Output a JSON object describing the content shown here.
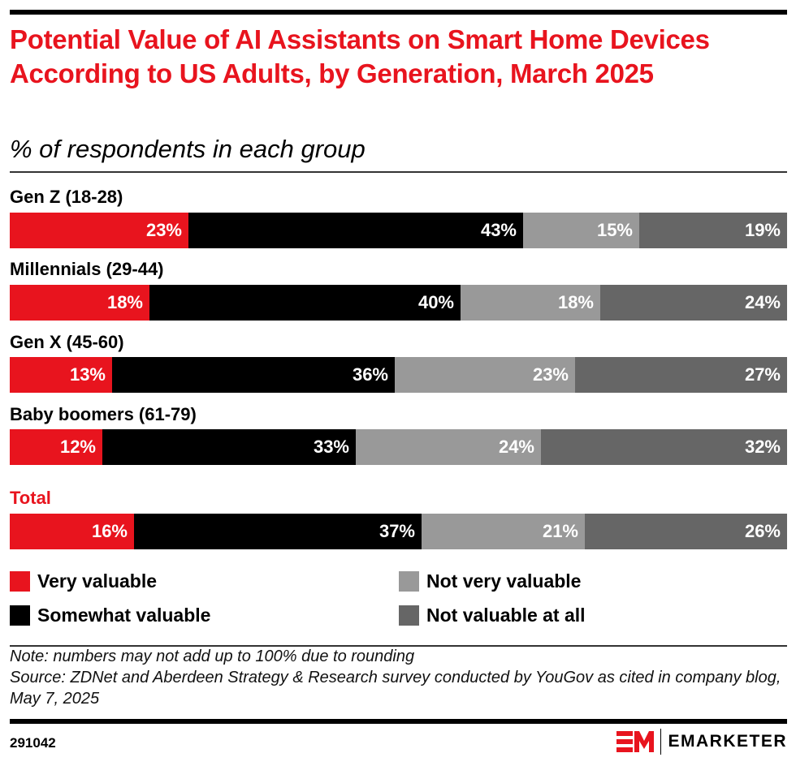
{
  "chart_data": {
    "type": "bar",
    "orientation": "horizontal",
    "stacked": true,
    "percent_stacked": true,
    "title": "Potential Value of AI Assistants on Smart Home Devices According to US Adults, by Generation, March 2025",
    "subtitle": "% of respondents in each group",
    "categories": [
      "Gen Z (18-28)",
      "Millennials (29-44)",
      "Gen X (45-60)",
      "Baby boomers (61-79)",
      "Total"
    ],
    "series": [
      {
        "name": "Very valuable",
        "color": "#e8141e",
        "values": [
          23,
          18,
          13,
          12,
          16
        ]
      },
      {
        "name": "Somewhat valuable",
        "color": "#000000",
        "values": [
          43,
          40,
          36,
          33,
          37
        ]
      },
      {
        "name": "Not very valuable",
        "color": "#999999",
        "values": [
          15,
          18,
          23,
          24,
          21
        ]
      },
      {
        "name": "Not valuable at all",
        "color": "#666666",
        "values": [
          19,
          24,
          27,
          32,
          26
        ]
      }
    ],
    "value_suffix": "%",
    "xlim": [
      0,
      100
    ],
    "grid": false,
    "legend_position": "bottom"
  },
  "header": {
    "title": "Potential Value of AI Assistants on Smart Home Devices According to US Adults, by Generation, March 2025",
    "subtitle": "% of respondents in each group"
  },
  "footer": {
    "note": "Note: numbers may not add up to 100% due to rounding",
    "source": "Source: ZDNet and Aberdeen Strategy & Research survey conducted by YouGov as cited in company blog, May 7, 2025",
    "chart_id": "291042",
    "brand": "EMARKETER",
    "brand_color": "#e8141e"
  }
}
